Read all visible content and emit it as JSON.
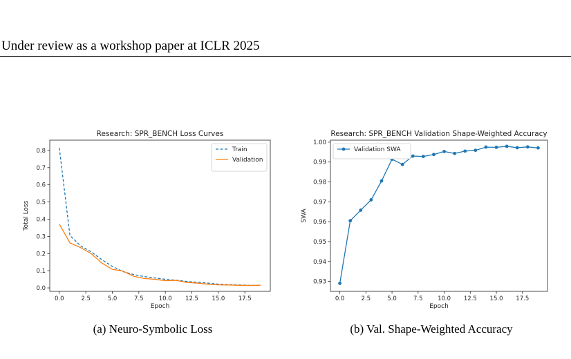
{
  "header": {
    "text": "Under review as a workshop paper at ICLR 2025"
  },
  "figures": {
    "a": {
      "caption": "(a) Neuro-Symbolic Loss"
    },
    "b": {
      "caption": "(b) Val. Shape-Weighted Accuracy"
    }
  },
  "chart_data": [
    {
      "type": "line",
      "title": "Research: SPR_BENCH Loss Curves",
      "xlabel": "Epoch",
      "ylabel": "Total Loss",
      "xlim": [
        -0.9,
        19.9
      ],
      "ylim": [
        -0.02,
        0.86
      ],
      "xticks": [
        0.0,
        2.5,
        5.0,
        7.5,
        10.0,
        12.5,
        15.0,
        17.5
      ],
      "xtick_labels": [
        "0.0",
        "2.5",
        "5.0",
        "7.5",
        "10.0",
        "12.5",
        "15.0",
        "17.5"
      ],
      "yticks": [
        0.0,
        0.1,
        0.2,
        0.3,
        0.4,
        0.5,
        0.6,
        0.7,
        0.8
      ],
      "ytick_labels": [
        "0.0",
        "0.1",
        "0.2",
        "0.3",
        "0.4",
        "0.5",
        "0.6",
        "0.7",
        "0.8"
      ],
      "grid": false,
      "legend": "top-right",
      "x": [
        0,
        1,
        2,
        3,
        4,
        5,
        6,
        7,
        8,
        9,
        10,
        11,
        12,
        13,
        14,
        15,
        16,
        17,
        18,
        19
      ],
      "series": [
        {
          "name": "Train",
          "color": "#1f77b4",
          "dashed": true,
          "values": [
            0.815,
            0.305,
            0.245,
            0.21,
            0.165,
            0.125,
            0.095,
            0.078,
            0.066,
            0.058,
            0.05,
            0.045,
            0.038,
            0.033,
            0.028,
            0.022,
            0.019,
            0.017,
            0.015,
            0.015
          ]
        },
        {
          "name": "Validation",
          "color": "#ff7f0e",
          "dashed": false,
          "values": [
            0.372,
            0.262,
            0.235,
            0.2,
            0.145,
            0.108,
            0.098,
            0.068,
            0.055,
            0.05,
            0.042,
            0.044,
            0.032,
            0.028,
            0.022,
            0.018,
            0.017,
            0.015,
            0.014,
            0.016
          ]
        }
      ]
    },
    {
      "type": "line",
      "title": "Research: SPR_BENCH Validation Shape-Weighted Accuracy",
      "xlabel": "Epoch",
      "ylabel": "SWA",
      "xlim": [
        -0.9,
        19.9
      ],
      "ylim": [
        0.925,
        1.001
      ],
      "xticks": [
        0.0,
        2.5,
        5.0,
        7.5,
        10.0,
        12.5,
        15.0,
        17.5
      ],
      "xtick_labels": [
        "0.0",
        "2.5",
        "5.0",
        "7.5",
        "10.0",
        "12.5",
        "15.0",
        "17.5"
      ],
      "yticks": [
        0.93,
        0.94,
        0.95,
        0.96,
        0.97,
        0.98,
        0.99,
        1.0
      ],
      "ytick_labels": [
        "0.93",
        "0.94",
        "0.95",
        "0.96",
        "0.97",
        "0.98",
        "0.99",
        "1.00"
      ],
      "grid": false,
      "legend": "top-left",
      "x": [
        0,
        1,
        2,
        3,
        4,
        5,
        6,
        7,
        8,
        9,
        10,
        11,
        12,
        13,
        14,
        15,
        16,
        17,
        18,
        19
      ],
      "series": [
        {
          "name": "Validation SWA",
          "color": "#1f77b4",
          "marker": "o",
          "values": [
            0.929,
            0.9605,
            0.9658,
            0.971,
            0.9805,
            0.9914,
            0.9888,
            0.993,
            0.9928,
            0.9938,
            0.9953,
            0.9943,
            0.9955,
            0.9959,
            0.9975,
            0.9974,
            0.9979,
            0.9972,
            0.9976,
            0.9971
          ]
        }
      ]
    }
  ]
}
